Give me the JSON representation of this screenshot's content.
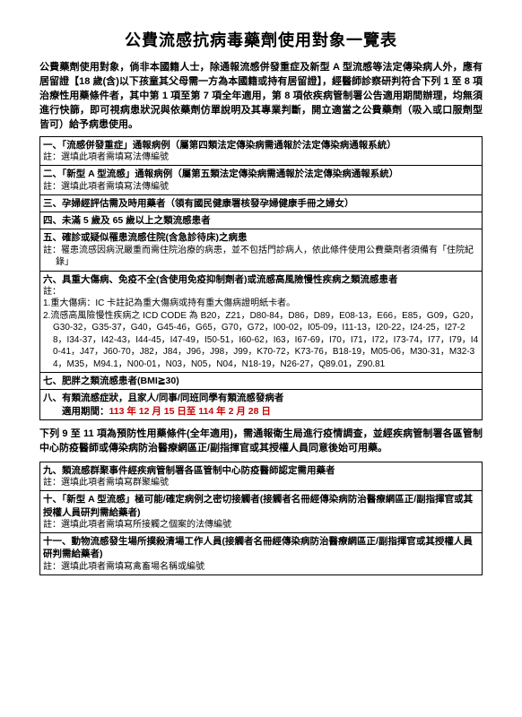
{
  "title": "公費流感抗病毒藥劑使用對象一覽表",
  "intro": "公費藥劑使用對象，倘非本國籍人士，除通報流感併發重症及新型 A 型流感等法定傳染病人外，應有居留證【18 歲(含)以下孩童其父母需一方為本國籍或持有居留證】，經醫師診察研判符合下列 1 至 8 項治療性用藥條件者，其中第 1 項至第 7 項全年適用，第 8 項依疾病管制署公告適用期間辦理，均無須進行快篩，即可視病患狀況與依藥劑仿單說明及其專業判斷，開立適當之公費藥劑（吸入或口服劑型皆可）給予病患使用。",
  "rows1": [
    {
      "head": "一、「流感併發重症」通報病例（屬第四類法定傳染病需通報於法定傳染病通報系統）",
      "note": "註：選填此項者需填寫法傳編號"
    },
    {
      "head": "二、「新型 A 型流感」通報病例（屬第五類法定傳染病需通報於法定傳染病通報系統）",
      "note": "註：選填此項者需填寫法傳編號"
    },
    {
      "head": "三、孕婦經評估需及時用藥者（領有國民健康署核發孕婦健康手冊之婦女）",
      "note": ""
    },
    {
      "head": "四、未滿 5 歲及 65 歲以上之類流感患者",
      "note": ""
    },
    {
      "head": "五、確診或疑似罹患流感住院(含急診待床)之病患",
      "note": "註：罹患流感因病況嚴重而需住院治療的病患，並不包括門診病人，依此條件使用公費藥劑者須備有「住院紀錄」"
    }
  ],
  "row6_head": "六、具重大傷病、免疫不全(含使用免疫抑制劑者)或流感高風險慢性疾病之類流感患者",
  "row6_note": "註：",
  "row6_sub1": "1.重大傷病：IC 卡註記為重大傷病或持有重大傷病證明紙卡者。",
  "row6_sub2": "2.流感高風險慢性疾病之 ICD CODE 為 B20，Z21，D80-84，D86，D89，E08-13，E66，E85，G09，G20，G30-32，G35-37，G40，G45-46，G65，G70，G72，I00-02，I05-09，I11-13，I20-22，I24-25，I27-28，I34-37，I42-43，I44-45，I47-49，I50-51，I60-62，I63，I67-69，I70，I71，I72，I73-74，I77，I79，I40-41，J47，J60-70，J82，J84，J96，J98，J99，K70-72，K73-76，B18-19，M05-06，M30-31，M32-34，M35，M94.1，N00-01，N03，N05，N04，N18-19，N26-27，Q89.01，Z90.81",
  "row7_head": "七、肥胖之類流感患者(BMI≧30)",
  "row8_head": "八、有類流感症狀，且家人/同事/同班同學有類流感發病者",
  "row8_period_label": "　　適用期間：",
  "row8_period_value": "113 年 12 月 15 日至 114 年 2 月 28 日",
  "mid": "下列 9 至 11 項為預防性用藥條件(全年適用)，需通報衛生局進行疫情調查，並經疾病管制署各區管制中心防疫醫師或傳染病防治醫療網區正/副指揮官或其授權人員同意後始可用藥。",
  "rows2": [
    {
      "head": "九、類流感群聚事件經疾病管制署各區管制中心防疫醫師認定需用藥者",
      "note": "註：選填此項者需填寫群聚編號"
    },
    {
      "head": "十、「新型 A 型流感」極可能/確定病例之密切接觸者(接觸者名冊經傳染病防治醫療網區正/副指揮官或其授權人員研判需給藥者)",
      "note": "註：選填此項者需填寫所接觸之個案的法傳編號"
    },
    {
      "head": "十一、動物流感發生場所撲殺清場工作人員(接觸者名冊經傳染病防治醫療網區正/副指揮官或其授權人員研判需給藥者)",
      "note": "註：選填此項者需填寫禽畜場名稱或編號"
    }
  ]
}
